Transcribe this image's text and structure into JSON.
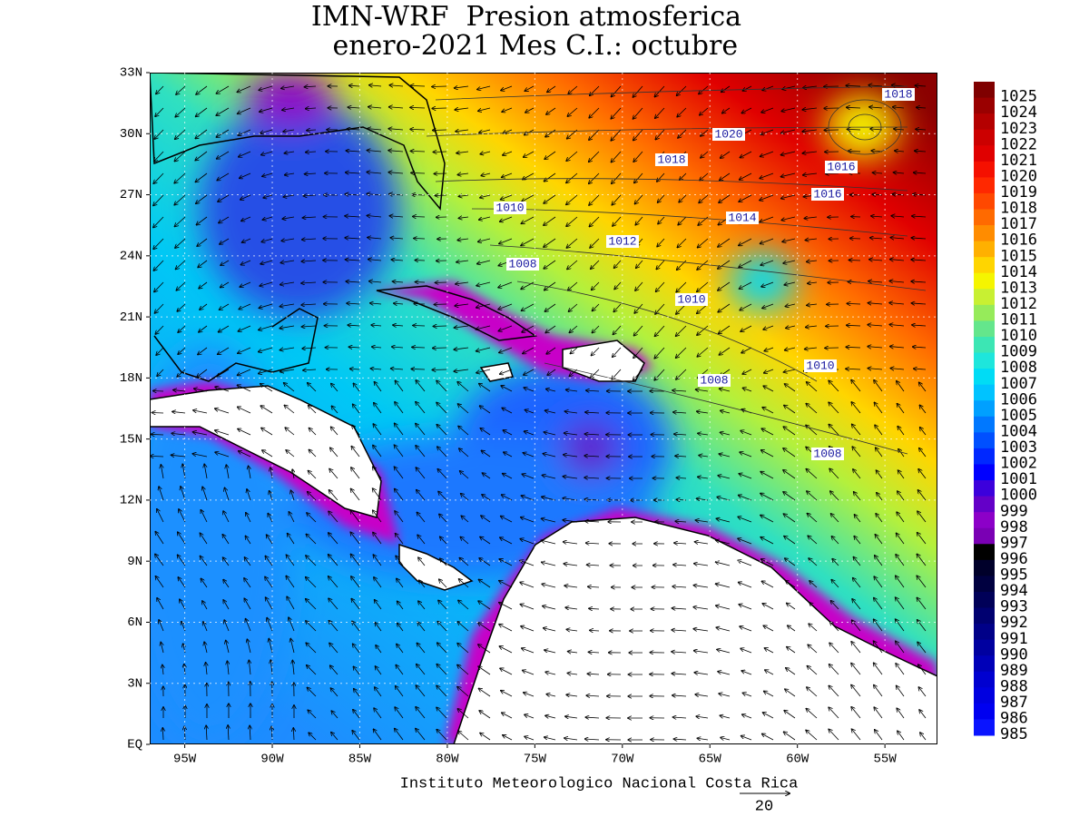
{
  "header": {
    "title": "IMN-WRF  Presion atmosferica",
    "subtitle": " enero-2021 Mes C.I.: octubre"
  },
  "axes": {
    "lat_labels": [
      "33N",
      "30N",
      "27N",
      "24N",
      "21N",
      "18N",
      "15N",
      "12N",
      "9N",
      "6N",
      "3N",
      "EQ"
    ],
    "lon_labels": [
      "95W",
      "90W",
      "85W",
      "80W",
      "75W",
      "70W",
      "65W",
      "60W",
      "55W"
    ]
  },
  "contour_labels": [
    "1018",
    "1020",
    "1018",
    "1016",
    "1016",
    "1010",
    "1014",
    "1012",
    "1008",
    "1010",
    "1010",
    "1008",
    "1008"
  ],
  "colorbar": {
    "levels": [
      1025,
      1024,
      1023,
      1022,
      1021,
      1020,
      1019,
      1018,
      1017,
      1016,
      1015,
      1014,
      1013,
      1012,
      1011,
      1010,
      1009,
      1008,
      1007,
      1006,
      1005,
      1004,
      1003,
      1002,
      1001,
      1000,
      999,
      998,
      997,
      996,
      995,
      994,
      993,
      992,
      991,
      990,
      989,
      988,
      987,
      986,
      985
    ],
    "colors": [
      "#7f0000",
      "#9a0000",
      "#b40000",
      "#cc0000",
      "#e00000",
      "#f51000",
      "#ff2800",
      "#ff4800",
      "#ff6a00",
      "#ff8c00",
      "#ffb000",
      "#ffd500",
      "#f5f500",
      "#c8f032",
      "#96eb5a",
      "#64e68c",
      "#3ce6b4",
      "#1ee6dc",
      "#00dcf5",
      "#00c3ff",
      "#00a0ff",
      "#0078ff",
      "#0050ff",
      "#0028ff",
      "#0000ff",
      "#3c00dc",
      "#6400c8",
      "#8c00c8",
      "#7a00b4",
      "#000000",
      "#00002a",
      "#000040",
      "#000058",
      "#000070",
      "#000088",
      "#0000a0",
      "#0000b8",
      "#0000d0",
      "#0000e0",
      "#0000f0",
      "#0a14ff"
    ]
  },
  "footer": {
    "credit": "Instituto Meteorologico Nacional Costa Rica",
    "vector_scale": "20"
  }
}
